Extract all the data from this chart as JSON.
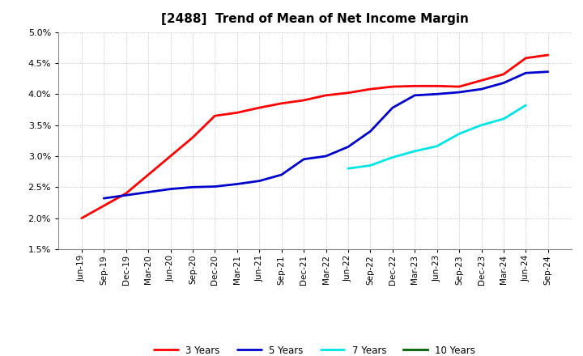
{
  "title": "[2488]  Trend of Mean of Net Income Margin",
  "x_labels": [
    "Jun-19",
    "Sep-19",
    "Dec-19",
    "Mar-20",
    "Jun-20",
    "Sep-20",
    "Dec-20",
    "Mar-21",
    "Jun-21",
    "Sep-21",
    "Dec-21",
    "Mar-22",
    "Jun-22",
    "Sep-22",
    "Dec-22",
    "Mar-23",
    "Jun-23",
    "Sep-23",
    "Dec-23",
    "Mar-24",
    "Jun-24",
    "Sep-24"
  ],
  "three_yr": [
    0.02,
    0.022,
    0.024,
    0.027,
    0.03,
    0.033,
    0.0365,
    0.037,
    0.0378,
    0.0385,
    0.039,
    0.0398,
    0.0402,
    0.0408,
    0.0412,
    0.0413,
    0.0413,
    0.0412,
    0.0422,
    0.0432,
    0.0458,
    0.0463
  ],
  "five_yr": [
    null,
    0.0232,
    0.0237,
    0.0242,
    0.0247,
    0.025,
    0.0251,
    0.0255,
    0.026,
    0.027,
    0.0295,
    0.03,
    0.0315,
    0.034,
    0.0378,
    0.0398,
    0.04,
    0.0403,
    0.0408,
    0.0418,
    0.0434,
    0.0436
  ],
  "seven_yr": [
    null,
    null,
    null,
    null,
    null,
    null,
    null,
    null,
    null,
    null,
    null,
    null,
    0.028,
    0.0285,
    0.0298,
    0.0308,
    0.0316,
    0.0336,
    0.035,
    0.036,
    0.0382,
    null
  ],
  "ten_yr": [
    null,
    null,
    null,
    null,
    null,
    null,
    null,
    null,
    null,
    null,
    null,
    null,
    null,
    null,
    null,
    null,
    null,
    null,
    null,
    null,
    null,
    null
  ],
  "colors": {
    "3 Years": "#ff0000",
    "5 Years": "#0000cc",
    "7 Years": "#00e5e5",
    "10 Years": "#006400"
  },
  "ylim": [
    0.015,
    0.05
  ],
  "yticks": [
    0.015,
    0.02,
    0.025,
    0.03,
    0.035,
    0.04,
    0.045,
    0.05
  ],
  "line_width": 2.0,
  "grid_color": "#b0b0b0",
  "bg_color": "#ffffff"
}
